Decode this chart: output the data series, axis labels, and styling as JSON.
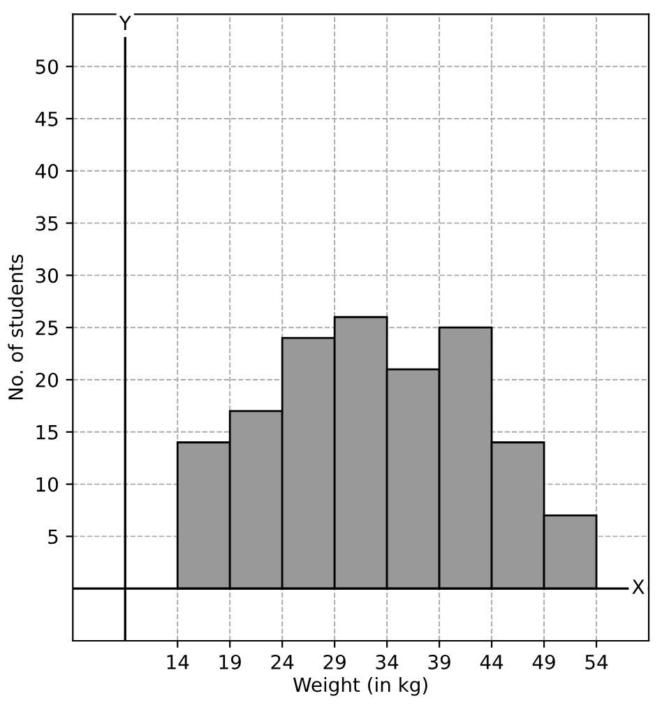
{
  "chart_data": {
    "type": "histogram",
    "xlabel": "Weight (in kg)",
    "ylabel": "No. of students",
    "bins": [
      14,
      19,
      24,
      29,
      34,
      39,
      44,
      49,
      54
    ],
    "values": [
      14,
      17,
      24,
      26,
      21,
      25,
      14,
      7
    ],
    "color": "#999999",
    "xlim": [
      4,
      59
    ],
    "ylim": [
      -5,
      55
    ],
    "xticks": [
      14,
      19,
      24,
      29,
      34,
      39,
      44,
      49,
      54
    ],
    "yticks": [
      5,
      10,
      15,
      20,
      25,
      30,
      35,
      40,
      45,
      50
    ],
    "grid": true,
    "ref_lines": [
      {
        "axis": "y",
        "value": 0,
        "color": "#000000"
      },
      {
        "axis": "x",
        "value": 9,
        "color": "#000000"
      }
    ],
    "annotations": [
      {
        "text": "X",
        "x": 58,
        "y": 0
      },
      {
        "text": "Y",
        "x": 9,
        "y": 54
      }
    ]
  }
}
